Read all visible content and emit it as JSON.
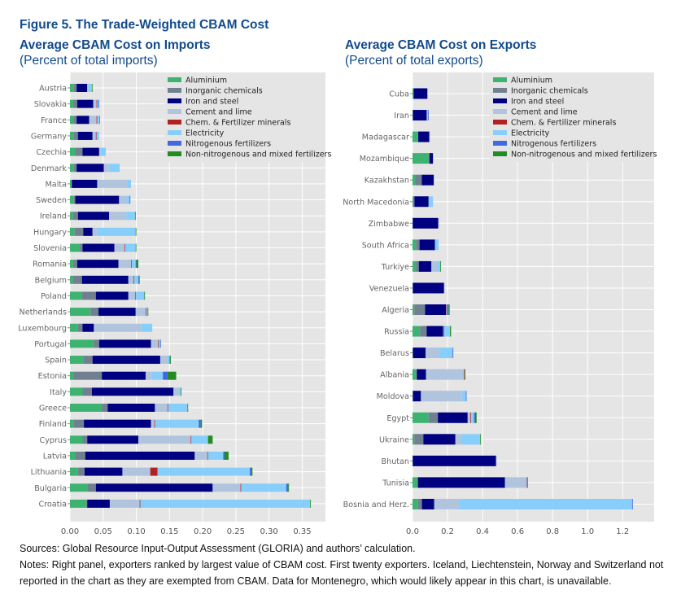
{
  "figure_title": "Figure 5. The Trade-Weighted CBAM Cost",
  "sources": "Sources: Global Resource Input-Output Assessment (GLORIA) and authors’ calculation.",
  "notes": "Notes: Right panel, exporters ranked by largest value of CBAM cost. First twenty exporters. Iceland, Liechtenstein, Norway and Switzerland not reported in the chart as they are exempted from CBAM. Data for Montenegro, which would likely appear in this chart, is unavailable.",
  "colors": {
    "Aluminium": "#3cb371",
    "Inorganic chemicals": "#708090",
    "Iron and steel": "#000080",
    "Cement and lime": "#b0c4de",
    "Chem. & Fertilizer minerals": "#b22222",
    "Electricity": "#87cefa",
    "Nitrogenous fertilizers": "#4169e1",
    "Non-nitrogenous and mixed fertilizers": "#228b22"
  },
  "chart_data": [
    {
      "type": "bar",
      "orientation": "horizontal",
      "stacked": true,
      "title": "Average CBAM Cost on Imports",
      "subtitle": "(Percent of total imports)",
      "xlabel": "",
      "ylabel": "",
      "xlim": [
        0,
        0.385
      ],
      "xticks": [
        "0.00",
        "0.05",
        "0.10",
        "0.15",
        "0.20",
        "0.25",
        "0.30",
        "0.35"
      ],
      "xtick_values": [
        0,
        0.05,
        0.1,
        0.15,
        0.2,
        0.25,
        0.3,
        0.35
      ],
      "grid": true,
      "legend_position": "top-right",
      "legend": [
        "Aluminium",
        "Inorganic chemicals",
        "Iron and steel",
        "Cement and lime",
        "Chem. & Fertilizer minerals",
        "Electricity",
        "Nitrogenous fertilizers",
        "Non-nitrogenous and mixed fertilizers"
      ],
      "categories": [
        "Austria",
        "Slovakia",
        "France",
        "Germany",
        "Czechia",
        "Denmark",
        "Malta",
        "Sweden",
        "Ireland",
        "Hungary",
        "Slovenia",
        "Romania",
        "Belgium",
        "Poland",
        "Netherlands",
        "Luxembourg",
        "Portugal",
        "Spain",
        "Estonia",
        "Italy",
        "Greece",
        "Finland",
        "Cyprus",
        "Latvia",
        "Lithuania",
        "Bulgaria",
        "Croatia"
      ],
      "series": [
        {
          "name": "Aluminium",
          "values": [
            0.006,
            0.005,
            0.005,
            0.006,
            0.008,
            0.006,
            0.002,
            0.006,
            0.004,
            0.007,
            0.014,
            0.005,
            0.004,
            0.018,
            0.031,
            0.012,
            0.036,
            0.02,
            0.005,
            0.019,
            0.048,
            0.006,
            0.019,
            0.008,
            0.012,
            0.026,
            0.025
          ]
        },
        {
          "name": "Inorganic chemicals",
          "values": [
            0.004,
            0.006,
            0.005,
            0.006,
            0.011,
            0.004,
            0.001,
            0.002,
            0.008,
            0.013,
            0.005,
            0.006,
            0.014,
            0.021,
            0.012,
            0.007,
            0.008,
            0.014,
            0.043,
            0.014,
            0.009,
            0.015,
            0.007,
            0.015,
            0.01,
            0.013,
            0.001
          ]
        },
        {
          "name": "Iron and steel",
          "values": [
            0.016,
            0.024,
            0.019,
            0.022,
            0.025,
            0.041,
            0.038,
            0.066,
            0.047,
            0.014,
            0.048,
            0.062,
            0.07,
            0.049,
            0.056,
            0.017,
            0.078,
            0.102,
            0.066,
            0.123,
            0.071,
            0.101,
            0.077,
            0.165,
            0.057,
            0.176,
            0.034
          ]
        },
        {
          "name": "Cement and lime",
          "values": [
            0.002,
            0.005,
            0.011,
            0.005,
            0.002,
            0.009,
            0.045,
            0.011,
            0.026,
            0.007,
            0.015,
            0.019,
            0.008,
            0.01,
            0.015,
            0.072,
            0.011,
            0.011,
            0.009,
            0.008,
            0.019,
            0.005,
            0.079,
            0.019,
            0.042,
            0.042,
            0.045
          ]
        },
        {
          "name": "Chem. & Fertilizer minerals",
          "values": [
            0,
            0.001,
            0.001,
            0.001,
            0,
            0,
            0,
            0,
            0,
            0,
            0.001,
            0.001,
            0.001,
            0.001,
            0.001,
            0,
            0.001,
            0,
            0,
            0,
            0.001,
            0.001,
            0.001,
            0.001,
            0.011,
            0.001,
            0.001
          ]
        },
        {
          "name": "Electricity",
          "values": [
            0.005,
            0.002,
            0.003,
            0.004,
            0.008,
            0.015,
            0.006,
            0.005,
            0.013,
            0.058,
            0.016,
            0.006,
            0.006,
            0.013,
            0.002,
            0.016,
            0.002,
            0.003,
            0.017,
            0.003,
            0.029,
            0.066,
            0.025,
            0.023,
            0.139,
            0.068,
            0.256
          ]
        },
        {
          "name": "Nitrogenous fertilizers",
          "values": [
            0,
            0.001,
            0.001,
            0,
            0,
            0,
            0,
            0.001,
            0,
            0,
            0,
            0.001,
            0.001,
            0,
            0,
            0,
            0.001,
            0.001,
            0.007,
            0,
            0,
            0.003,
            0,
            0.002,
            0.002,
            0.003,
            0
          ]
        },
        {
          "name": "Non-nitrogenous and mixed fertilizers",
          "values": [
            0.001,
            0,
            0,
            0,
            0,
            0,
            0,
            0,
            0.001,
            0.001,
            0.001,
            0.003,
            0.001,
            0.001,
            0.001,
            0,
            0,
            0.001,
            0.013,
            0.001,
            0.001,
            0.002,
            0.007,
            0.006,
            0.002,
            0.001,
            0.001
          ]
        }
      ]
    },
    {
      "type": "bar",
      "orientation": "horizontal",
      "stacked": true,
      "title": "Average CBAM Cost on Exports",
      "subtitle": "(Percent of total exports)",
      "xlabel": "",
      "ylabel": "",
      "xlim": [
        0,
        1.38
      ],
      "xticks": [
        "0.0",
        "0.2",
        "0.4",
        "0.6",
        "0.8",
        "1.0",
        "1.2"
      ],
      "xtick_values": [
        0,
        0.2,
        0.4,
        0.6,
        0.8,
        1.0,
        1.2
      ],
      "grid": true,
      "legend_position": "top-right",
      "legend": [
        "Aluminium",
        "Inorganic chemicals",
        "Iron and steel",
        "Cement and lime",
        "Chem. & Fertilizer minerals",
        "Electricity",
        "Nitrogenous fertilizers",
        "Non-nitrogenous and mixed fertilizers"
      ],
      "categories": [
        "Cuba",
        "Iran",
        "Madagascar",
        "Mozambique",
        "Kazakhstan",
        "North Macedonia",
        "Zimbabwe",
        "South Africa",
        "Turkiye",
        "Venezuela",
        "Algeria",
        "Russia",
        "Belarus",
        "Albania",
        "Moldova",
        "Egypt",
        "Ukraine",
        "Bhutan",
        "Tunisia",
        "Bosnia and Herz."
      ],
      "series": [
        {
          "name": "Aluminium",
          "values": [
            0.005,
            0.002,
            0.032,
            0.095,
            0.016,
            0.003,
            0.001,
            0.02,
            0.021,
            0.001,
            0.01,
            0.043,
            0.002,
            0.022,
            0.002,
            0.092,
            0.01,
            0.001,
            0.028,
            0.032
          ]
        },
        {
          "name": "Inorganic chemicals",
          "values": [
            0.002,
            0.001,
            0.001,
            0.002,
            0.037,
            0.008,
            0.001,
            0.02,
            0.015,
            0.002,
            0.062,
            0.038,
            0.001,
            0.003,
            0.001,
            0.053,
            0.052,
            0.001,
            0.003,
            0.022
          ]
        },
        {
          "name": "Iron and steel",
          "values": [
            0.078,
            0.078,
            0.063,
            0.02,
            0.068,
            0.081,
            0.145,
            0.088,
            0.072,
            0.177,
            0.12,
            0.094,
            0.072,
            0.052,
            0.045,
            0.17,
            0.183,
            0.475,
            0.497,
            0.07
          ]
        },
        {
          "name": "Cement and lime",
          "values": [
            0,
            0.002,
            0.001,
            0,
            0.001,
            0.001,
            0.001,
            0.001,
            0.033,
            0.001,
            0.004,
            0.003,
            0.081,
            0.218,
            0.236,
            0.016,
            0.034,
            0.002,
            0.122,
            0.142
          ]
        },
        {
          "name": "Chem. & Fertilizer minerals",
          "values": [
            0,
            0,
            0,
            0,
            0,
            0,
            0,
            0,
            0,
            0,
            0.004,
            0.003,
            0,
            0.003,
            0,
            0.004,
            0,
            0,
            0.002,
            0
          ]
        },
        {
          "name": "Electricity",
          "values": [
            0,
            0.006,
            0,
            0,
            0,
            0.024,
            0,
            0.02,
            0.018,
            0,
            0.002,
            0.033,
            0.073,
            0,
            0.021,
            0.016,
            0.107,
            0,
            0.004,
            0.988
          ]
        },
        {
          "name": "Nitrogenous fertilizers",
          "values": [
            0,
            0.003,
            0,
            0,
            0,
            0,
            0,
            0,
            0,
            0,
            0.004,
            0,
            0.004,
            0,
            0.003,
            0.006,
            0,
            0,
            0.003,
            0.004
          ]
        },
        {
          "name": "Non-nitrogenous and mixed fertilizers",
          "values": [
            0,
            0,
            0,
            0,
            0,
            0,
            0,
            0,
            0.003,
            0,
            0.006,
            0.006,
            0,
            0.003,
            0,
            0.009,
            0.003,
            0,
            0,
            0
          ]
        }
      ]
    }
  ]
}
